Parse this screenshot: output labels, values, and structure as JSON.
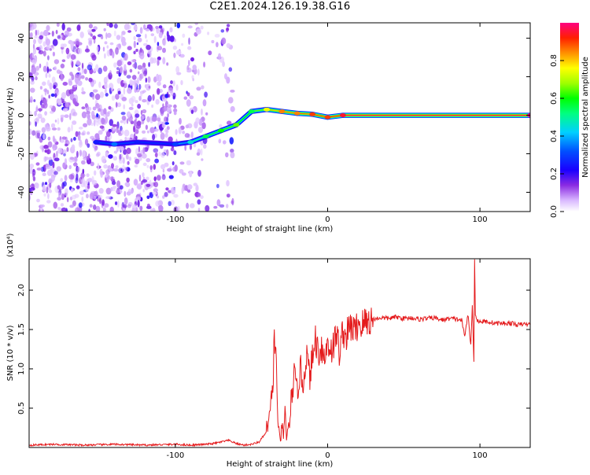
{
  "title": "C2E1.2024.126.19.38.G16",
  "chart_data": [
    {
      "type": "heatmap",
      "xlabel": "Height of straight line (km)",
      "ylabel": "Frequency (Hz)",
      "xlim": [
        -196,
        133
      ],
      "ylim": [
        -50,
        48
      ],
      "xticks": [
        -100,
        0,
        100
      ],
      "yticks": [
        -40,
        -20,
        0,
        20,
        40
      ],
      "colorbar": {
        "label": "Normalized spectral amplitude",
        "range": [
          0,
          1
        ],
        "ticks": [
          "0.0",
          "0.2",
          "0.4",
          "0.6",
          "0.8"
        ]
      },
      "ridge": [
        {
          "x": -152,
          "f": -14,
          "amp": 0.25
        },
        {
          "x": -140,
          "f": -15,
          "amp": 0.35
        },
        {
          "x": -125,
          "f": -14,
          "amp": 0.25
        },
        {
          "x": -100,
          "f": -15,
          "amp": 0.3
        },
        {
          "x": -90,
          "f": -14,
          "amp": 0.45
        },
        {
          "x": -80,
          "f": -11,
          "amp": 0.55
        },
        {
          "x": -70,
          "f": -8,
          "amp": 0.6
        },
        {
          "x": -60,
          "f": -5,
          "amp": 0.65
        },
        {
          "x": -50,
          "f": 2,
          "amp": 0.55
        },
        {
          "x": -40,
          "f": 3,
          "amp": 0.75
        },
        {
          "x": -30,
          "f": 2,
          "amp": 0.85
        },
        {
          "x": -20,
          "f": 1,
          "amp": 0.85
        },
        {
          "x": -10,
          "f": 0.5,
          "amp": 0.9
        },
        {
          "x": 0,
          "f": -1,
          "amp": 0.9
        },
        {
          "x": 10,
          "f": 0,
          "amp": 0.95
        },
        {
          "x": 133,
          "f": 0,
          "amp": 1.0
        }
      ]
    },
    {
      "type": "line",
      "xlabel": "Height of straight line (km)",
      "ylabel": "SNR (10 * v/v)",
      "multiplier": "(x10⁴)",
      "xlim": [
        -196,
        133
      ],
      "ylim": [
        0,
        2.4
      ],
      "xticks": [
        -100,
        0,
        100
      ],
      "yticks": [
        "0.5",
        "1.0",
        "1.5",
        "2.0"
      ],
      "series": [
        {
          "color": "#e41a1c",
          "x": [
            -196,
            -180,
            -160,
            -140,
            -120,
            -100,
            -90,
            -80,
            -75,
            -70,
            -65,
            -60,
            -55,
            -50,
            -45,
            -40,
            -38,
            -36,
            -35,
            -34,
            -33,
            -32,
            -31,
            -30,
            -29,
            -28,
            -27,
            -26,
            -25,
            -24,
            -22,
            -20,
            -18,
            -16,
            -14,
            -12,
            -10,
            -8,
            -6,
            -4,
            -2,
            0,
            2,
            4,
            6,
            8,
            10,
            12,
            14,
            16,
            18,
            20,
            22,
            25,
            30,
            35,
            40,
            45,
            50,
            55,
            60,
            65,
            70,
            75,
            80,
            85,
            88,
            90,
            92,
            94,
            95,
            96,
            96.5,
            97,
            98,
            100,
            105,
            110,
            115,
            120,
            125,
            130,
            133
          ],
          "y": [
            0.03,
            0.04,
            0.03,
            0.04,
            0.03,
            0.04,
            0.03,
            0.04,
            0.05,
            0.07,
            0.09,
            0.05,
            0.03,
            0.04,
            0.07,
            0.2,
            0.4,
            0.8,
            1.4,
            1.2,
            0.5,
            0.2,
            0.05,
            0.3,
            0.1,
            0.5,
            0.1,
            0.3,
            0.2,
            0.6,
            0.9,
            0.7,
            1.0,
            0.8,
            1.2,
            0.9,
            1.1,
            1.4,
            1.2,
            1.3,
            1.1,
            1.35,
            1.25,
            1.3,
            1.45,
            1.2,
            1.5,
            1.4,
            1.5,
            1.55,
            1.45,
            1.6,
            1.55,
            1.6,
            1.63,
            1.65,
            1.64,
            1.66,
            1.64,
            1.65,
            1.63,
            1.64,
            1.65,
            1.62,
            1.64,
            1.63,
            1.62,
            1.4,
            1.7,
            1.3,
            1.8,
            1.1,
            2.4,
            1.7,
            1.62,
            1.6,
            1.6,
            1.58,
            1.58,
            1.58,
            1.56,
            1.57,
            1.56
          ]
        }
      ]
    }
  ]
}
